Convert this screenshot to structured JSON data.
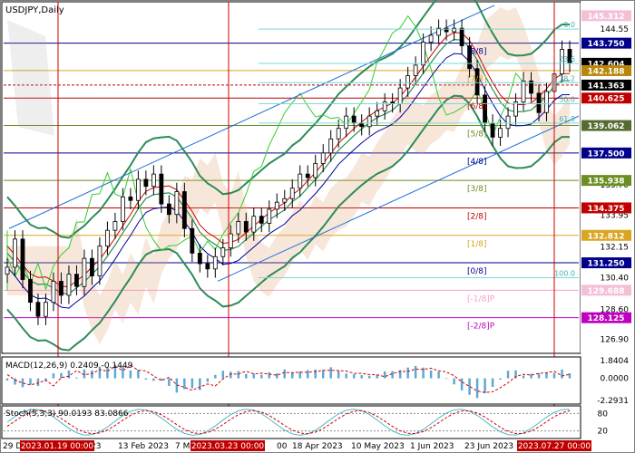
{
  "window": {
    "title": "USDJPY,Daily"
  },
  "colors": {
    "frame": "#000000",
    "grid_red": "#d00000",
    "bollinger": "#2e8b57",
    "ichimoku_cloud": "#e0a070",
    "cloud_grey": "#a0a0a0",
    "price": "#000000",
    "channel": "#1e6fd9",
    "lime": "#32cd32",
    "tenkan": "#d00000",
    "kijun": "#0000a0",
    "macd_hist": "#5fa8d3",
    "macd_signal": "#d00000",
    "stoch_main": "#4fb8c8",
    "stoch_signal": "#d00000"
  },
  "chart_data": [
    {
      "type": "line",
      "symbol": "USDJPY",
      "timeframe": "Daily",
      "x_ticks": [
        "29 Dec 2022",
        "13 Feb 2023",
        "18 Apr 2023",
        "10 May 2023",
        "1 Jun 2023",
        "23 Jun 2023"
      ],
      "x_highlight_labels": [
        "2023.01.19 00:00",
        "2023.03.23 00:00",
        "2023.07.27 00:00"
      ],
      "x_partial_labels": [
        "23",
        "7 M",
        "00"
      ],
      "y_ticks": [
        144.55,
        143.75,
        142.604,
        142.188,
        141.363,
        140.625,
        139.062,
        137.5,
        135.938,
        134.375,
        132.812,
        131.25,
        130.4,
        128.125,
        126.9
      ],
      "y_plain_ticks": [
        144.55,
        142.604,
        137.5,
        135.7,
        133.95,
        132.15,
        130.4,
        128.6,
        126.9
      ],
      "y_price_tags": [
        {
          "value": "145.312",
          "bg": "#f4c0d8",
          "fg": "#ffffff"
        },
        {
          "value": "143.750",
          "bg": "#00008b",
          "fg": "#ffffff"
        },
        {
          "value": "142.604",
          "bg": "#000000",
          "fg": "#ffffff"
        },
        {
          "value": "142.188",
          "bg": "#b8860b",
          "fg": "#ffffff"
        },
        {
          "value": "141.363",
          "bg": "#000000",
          "fg": "#ffffff"
        },
        {
          "value": "140.625",
          "bg": "#c00000",
          "fg": "#ffffff"
        },
        {
          "value": "139.062",
          "bg": "#556b2f",
          "fg": "#ffffff"
        },
        {
          "value": "137.500",
          "bg": "#00008b",
          "fg": "#ffffff"
        },
        {
          "value": "135.938",
          "bg": "#6b8e23",
          "fg": "#ffffff"
        },
        {
          "value": "134.375",
          "bg": "#c00000",
          "fg": "#ffffff"
        },
        {
          "value": "132.812",
          "bg": "#daa520",
          "fg": "#ffffff"
        },
        {
          "value": "131.250",
          "bg": "#00008b",
          "fg": "#ffffff"
        },
        {
          "value": "129.688",
          "bg": "#f4c0d8",
          "fg": "#ffffff"
        },
        {
          "value": "128.125",
          "bg": "#c000c0",
          "fg": "#ffffff"
        }
      ],
      "murrey_levels": [
        {
          "label": "[8/8]",
          "value": 143.75,
          "color": "#00008b"
        },
        {
          "label": "[7/8]",
          "value": 142.188,
          "color": "#daa520"
        },
        {
          "label": "[6/8]",
          "value": 140.625,
          "color": "#c00000"
        },
        {
          "label": "[5/8]",
          "value": 139.062,
          "color": "#6b8e23"
        },
        {
          "label": "[4/8]",
          "value": 137.5,
          "color": "#00008b"
        },
        {
          "label": "[3/8]",
          "value": 135.938,
          "color": "#6b8e23"
        },
        {
          "label": "[2/8]",
          "value": 134.375,
          "color": "#c00000"
        },
        {
          "label": "[1/8]",
          "value": 132.812,
          "color": "#daa520"
        },
        {
          "label": "[0/8]",
          "value": 131.25,
          "color": "#00008b"
        },
        {
          "label": "[-1/8]P",
          "value": 129.688,
          "color": "#f4a0c8"
        },
        {
          "label": "[-2/8]P",
          "value": 128.125,
          "color": "#c000c0"
        }
      ],
      "fibo_levels": [
        {
          "label": "0.0",
          "value": 144.55
        },
        {
          "label": "23.6",
          "value": 142.6
        },
        {
          "label": "38.2",
          "value": 141.5
        },
        {
          "label": "50.0",
          "value": 140.3
        },
        {
          "label": "61.8",
          "value": 139.2
        },
        {
          "label": "100.0",
          "value": 130.4
        }
      ],
      "ylim": [
        126.2,
        146.0
      ],
      "current_price": 142.604,
      "close": [
        131.0,
        132.6,
        130.3,
        129.0,
        128.2,
        129.0,
        130.2,
        129.4,
        130.6,
        129.9,
        131.5,
        130.5,
        132.2,
        133.1,
        133.6,
        135.0,
        134.8,
        136.0,
        135.6,
        136.3,
        134.6,
        134.0,
        135.3,
        133.2,
        131.8,
        131.2,
        130.9,
        131.6,
        132.1,
        132.9,
        133.6,
        133.0,
        133.9,
        133.5,
        134.3,
        134.7,
        134.9,
        135.5,
        136.3,
        136.1,
        136.9,
        137.5,
        138.3,
        138.9,
        139.6,
        139.2,
        139.0,
        139.6,
        139.9,
        140.4,
        140.3,
        141.2,
        141.9,
        142.5,
        143.8,
        144.2,
        144.6,
        144.4,
        144.6,
        143.6,
        142.3,
        140.8,
        139.2,
        138.4,
        138.9,
        139.6,
        140.4,
        141.6,
        140.9,
        139.8,
        141.0,
        142.0,
        143.4,
        142.6
      ],
      "macd": {
        "label": "MACD(12,26,9) 0.2409 -0.1449",
        "main": 0.2409,
        "signal": -0.1449,
        "y_ticks": [
          1.8404,
          0.0,
          -2.2931
        ]
      },
      "stoch": {
        "label": "Stoch(5,3,3) 90.0193 83.0866",
        "main": 90.0193,
        "signal": 83.0866,
        "y_ticks": [
          80,
          20
        ]
      }
    }
  ]
}
